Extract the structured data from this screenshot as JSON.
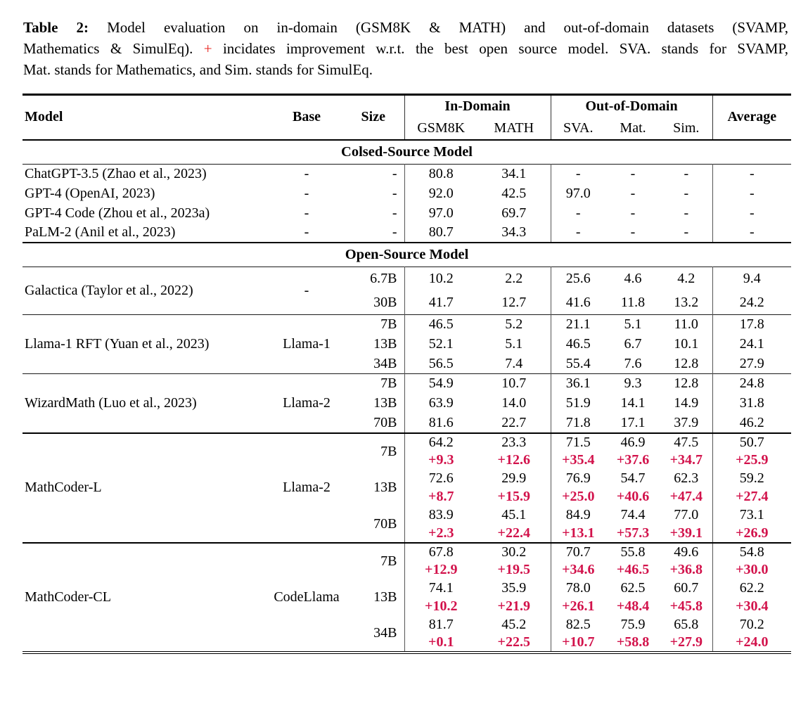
{
  "caption": {
    "label": "Table 2:",
    "line1_rest": "Model evaluation on in-domain (GSM8K & MATH) and out-of-domain datasets (SVAMP,",
    "line2_pre": "Mathematics & SimulEq).",
    "plus": "+",
    "line2_post": "incidates improvement w.r.t. the best open source model. SVA. stands for SVAMP,",
    "line3": "Mat. stands for Mathematics, and Sim. stands for SimulEq."
  },
  "colors": {
    "improvement_red": "#d2124b",
    "caption_plus_red": "#e8231d"
  },
  "table": {
    "headers": {
      "model": "Model",
      "base": "Base",
      "size": "Size",
      "in_domain": "In-Domain",
      "out_domain": "Out-of-Domain",
      "average": "Average",
      "sub": [
        "GSM8K",
        "MATH",
        "SVA.",
        "Mat.",
        "Sim."
      ]
    },
    "sections": [
      {
        "title": "Colsed-Source Model",
        "blocks": [
          {
            "model": "ChatGPT-3.5 (Zhao et al., 2023)",
            "base": "-",
            "rows": [
              {
                "size": "-",
                "values": [
                  "80.8",
                  "34.1",
                  "-",
                  "-",
                  "-",
                  "-"
                ]
              }
            ]
          },
          {
            "model": "GPT-4 (OpenAI, 2023)",
            "base": "-",
            "rows": [
              {
                "size": "-",
                "values": [
                  "92.0",
                  "42.5",
                  "97.0",
                  "-",
                  "-",
                  "-"
                ]
              }
            ]
          },
          {
            "model": "GPT-4 Code (Zhou et al., 2023a)",
            "base": "-",
            "rows": [
              {
                "size": "-",
                "values": [
                  "97.0",
                  "69.7",
                  "-",
                  "-",
                  "-",
                  "-"
                ]
              }
            ]
          },
          {
            "model": "PaLM-2 (Anil et al., 2023)",
            "base": "-",
            "rows": [
              {
                "size": "-",
                "values": [
                  "80.7",
                  "34.3",
                  "-",
                  "-",
                  "-",
                  "-"
                ]
              }
            ]
          }
        ]
      },
      {
        "title": "Open-Source Model",
        "blocks": [
          {
            "model": "Galactica (Taylor et al., 2022)",
            "base": "-",
            "rows": [
              {
                "size": "6.7B",
                "values": [
                  "10.2",
                  "2.2",
                  "25.6",
                  "4.6",
                  "4.2",
                  "9.4"
                ]
              },
              {
                "size": "30B",
                "values": [
                  "41.7",
                  "12.7",
                  "41.6",
                  "11.8",
                  "13.2",
                  "24.2"
                ]
              }
            ]
          },
          {
            "model": "Llama-1 RFT (Yuan et al., 2023)",
            "base": "Llama-1",
            "rows": [
              {
                "size": "7B",
                "values": [
                  "46.5",
                  "5.2",
                  "21.1",
                  "5.1",
                  "11.0",
                  "17.8"
                ]
              },
              {
                "size": "13B",
                "values": [
                  "52.1",
                  "5.1",
                  "46.5",
                  "6.7",
                  "10.1",
                  "24.1"
                ]
              },
              {
                "size": "34B",
                "values": [
                  "56.5",
                  "7.4",
                  "55.4",
                  "7.6",
                  "12.8",
                  "27.9"
                ]
              }
            ]
          },
          {
            "model": "WizardMath (Luo et al., 2023)",
            "base": "Llama-2",
            "rows": [
              {
                "size": "7B",
                "values": [
                  "54.9",
                  "10.7",
                  "36.1",
                  "9.3",
                  "12.8",
                  "24.8"
                ]
              },
              {
                "size": "13B",
                "values": [
                  "63.9",
                  "14.0",
                  "51.9",
                  "14.1",
                  "14.9",
                  "31.8"
                ]
              },
              {
                "size": "70B",
                "values": [
                  "81.6",
                  "22.7",
                  "71.8",
                  "17.1",
                  "37.9",
                  "46.2"
                ]
              }
            ]
          },
          {
            "model": "MathCoder-L",
            "base": "Llama-2",
            "rows": [
              {
                "size": "7B",
                "values": [
                  "64.2",
                  "23.3",
                  "71.5",
                  "46.9",
                  "47.5",
                  "50.7"
                ],
                "deltas": [
                  "+9.3",
                  "+12.6",
                  "+35.4",
                  "+37.6",
                  "+34.7",
                  "+25.9"
                ]
              },
              {
                "size": "13B",
                "values": [
                  "72.6",
                  "29.9",
                  "76.9",
                  "54.7",
                  "62.3",
                  "59.2"
                ],
                "deltas": [
                  "+8.7",
                  "+15.9",
                  "+25.0",
                  "+40.6",
                  "+47.4",
                  "+27.4"
                ]
              },
              {
                "size": "70B",
                "values": [
                  "83.9",
                  "45.1",
                  "84.9",
                  "74.4",
                  "77.0",
                  "73.1"
                ],
                "deltas": [
                  "+2.3",
                  "+22.4",
                  "+13.1",
                  "+57.3",
                  "+39.1",
                  "+26.9"
                ]
              }
            ]
          },
          {
            "model": "MathCoder-CL",
            "base": "CodeLlama",
            "rows": [
              {
                "size": "7B",
                "values": [
                  "67.8",
                  "30.2",
                  "70.7",
                  "55.8",
                  "49.6",
                  "54.8"
                ],
                "deltas": [
                  "+12.9",
                  "+19.5",
                  "+34.6",
                  "+46.5",
                  "+36.8",
                  "+30.0"
                ]
              },
              {
                "size": "13B",
                "values": [
                  "74.1",
                  "35.9",
                  "78.0",
                  "62.5",
                  "60.7",
                  "62.2"
                ],
                "deltas": [
                  "+10.2",
                  "+21.9",
                  "+26.1",
                  "+48.4",
                  "+45.8",
                  "+30.4"
                ]
              },
              {
                "size": "34B",
                "values": [
                  "81.7",
                  "45.2",
                  "82.5",
                  "75.9",
                  "65.8",
                  "70.2"
                ],
                "deltas": [
                  "+0.1",
                  "+22.5",
                  "+10.7",
                  "+58.8",
                  "+27.9",
                  "+24.0"
                ]
              }
            ]
          }
        ]
      }
    ]
  }
}
